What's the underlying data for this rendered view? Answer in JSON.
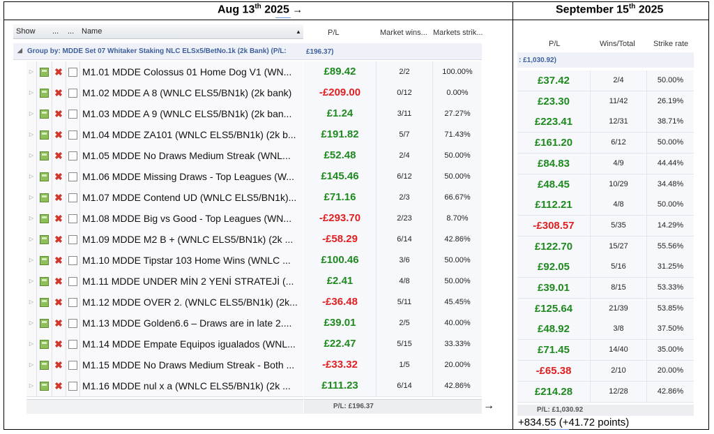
{
  "left_header": {
    "day": "Aug 13",
    "suffix": "th",
    "year": " 2025",
    "arrow": "→"
  },
  "right_header": {
    "day": "September 15",
    "suffix": "th",
    "year": " 2025"
  },
  "grid_columns": {
    "show": "Show",
    "dots1": "...",
    "dots2": "...",
    "name": "Name",
    "sort_icon": "triangle-up-icon"
  },
  "left_value_columns": {
    "pl": "P/L",
    "wins": "Market wins...",
    "strike": "Markets strik..."
  },
  "group_label": "Group by: MDDE Set 07 Whitaker Staking NLC ELSx5/BetNo.1k  (2k Bank)  (P/L:",
  "group_sum": "£196.37)",
  "strategies": [
    {
      "name": "M1.01 MDDE Colossus 01 Home Dog V1 (WN...",
      "pl": "£89.42",
      "wins": "2/2",
      "strike": "100.00%",
      "neg": false
    },
    {
      "name": "M1.02 MDDE A 8 (WNLC ELS5/BN1k) (2k bank)",
      "pl": "-£209.00",
      "wins": "0/12",
      "strike": "0.00%",
      "neg": true
    },
    {
      "name": "M1.03 MDDE A 9  (WNLC ELS5/BN1k) (2k ban...",
      "pl": "£1.24",
      "wins": "3/11",
      "strike": "27.27%",
      "neg": false
    },
    {
      "name": "M1.04 MDDE ZA101 (WNLC ELS5/BN1k) (2k b...",
      "pl": "£191.82",
      "wins": "5/7",
      "strike": "71.43%",
      "neg": false
    },
    {
      "name": "M1.05 MDDE No Draws Medium Streak (WNL...",
      "pl": "£52.48",
      "wins": "2/4",
      "strike": "50.00%",
      "neg": false
    },
    {
      "name": "M1.06 MDDE Missing Draws - Top Leagues (W...",
      "pl": "£145.46",
      "wins": "6/12",
      "strike": "50.00%",
      "neg": false
    },
    {
      "name": "M1.07 MDDE Contend UD (WNLC ELS5/BN1k)...",
      "pl": "£71.16",
      "wins": "2/3",
      "strike": "66.67%",
      "neg": false
    },
    {
      "name": "M1.08 MDDE Big vs Good - Top Leagues (WN...",
      "pl": "-£293.70",
      "wins": "2/23",
      "strike": "8.70%",
      "neg": true
    },
    {
      "name": "M1.09 MDDE M2 B + (WNLC ELS5/BN1k) (2k ...",
      "pl": "-£58.29",
      "wins": "6/14",
      "strike": "42.86%",
      "neg": true
    },
    {
      "name": "M1.10 MDDE Tipstar 103 Home Wins (WNLC ...",
      "pl": "£100.46",
      "wins": "3/6",
      "strike": "50.00%",
      "neg": false
    },
    {
      "name": "M1.11 MDDE UNDER MİN 2 YENİ STRATEJİ (...",
      "pl": "£2.41",
      "wins": "4/8",
      "strike": "50.00%",
      "neg": false
    },
    {
      "name": "M1.12 MDDE OVER 2. (WNLC ELS5/BN1k) (2k...",
      "pl": "-£36.48",
      "wins": "5/11",
      "strike": "45.45%",
      "neg": true
    },
    {
      "name": "M1.13 MDDE Golden6.6 – Draws are in late 2....",
      "pl": "£39.01",
      "wins": "2/5",
      "strike": "40.00%",
      "neg": false
    },
    {
      "name": "M1.14 MDDE Empate Equipos igualados (WNL...",
      "pl": "£22.47",
      "wins": "5/15",
      "strike": "33.33%",
      "neg": false
    },
    {
      "name": "M1.15 MDDE No Draws Medium Streak - Both ...",
      "pl": "-£33.32",
      "wins": "1/5",
      "strike": "20.00%",
      "neg": true
    },
    {
      "name": "M1.16 MDDE nul x a (WNLC ELS5/BN1k) (2k ...",
      "pl": "£111.23",
      "wins": "6/14",
      "strike": "42.86%",
      "neg": false
    }
  ],
  "left_footer": "P/L: £196.37",
  "mid_arrow": "→",
  "right_columns": {
    "pl": "P/L",
    "wins": "Wins/Total",
    "strike": "Strike rate"
  },
  "right_group": ": £1,030.92)",
  "right_rows": [
    {
      "pl": "£37.42",
      "wins": "2/4",
      "strike": "50.00%",
      "neg": false
    },
    {
      "pl": "£23.30",
      "wins": "11/42",
      "strike": "26.19%",
      "neg": false
    },
    {
      "pl": "£223.41",
      "wins": "12/31",
      "strike": "38.71%",
      "neg": false
    },
    {
      "pl": "£161.20",
      "wins": "6/12",
      "strike": "50.00%",
      "neg": false
    },
    {
      "pl": "£84.83",
      "wins": "4/9",
      "strike": "44.44%",
      "neg": false
    },
    {
      "pl": "£48.45",
      "wins": "10/29",
      "strike": "34.48%",
      "neg": false
    },
    {
      "pl": "£112.21",
      "wins": "4/8",
      "strike": "50.00%",
      "neg": false
    },
    {
      "pl": "-£308.57",
      "wins": "5/35",
      "strike": "14.29%",
      "neg": true
    },
    {
      "pl": "£122.70",
      "wins": "15/27",
      "strike": "55.56%",
      "neg": false
    },
    {
      "pl": "£92.05",
      "wins": "5/16",
      "strike": "31.25%",
      "neg": false
    },
    {
      "pl": "£39.01",
      "wins": "8/15",
      "strike": "53.33%",
      "neg": false
    },
    {
      "pl": "£125.64",
      "wins": "21/39",
      "strike": "53.85%",
      "neg": false
    },
    {
      "pl": "£48.92",
      "wins": "3/8",
      "strike": "37.50%",
      "neg": false
    },
    {
      "pl": "£71.45",
      "wins": "14/40",
      "strike": "35.00%",
      "neg": false
    },
    {
      "pl": "-£65.38",
      "wins": "2/10",
      "strike": "20.00%",
      "neg": true
    },
    {
      "pl": "£214.28",
      "wins": "12/28",
      "strike": "42.86%",
      "neg": false
    }
  ],
  "right_footer": "P/L: £1,030.92",
  "result_text": "+834.55  (+41.72 points)",
  "colors": {
    "positive": "#1e8a1e",
    "negative": "#e02020",
    "group_text": "#3e5f9b"
  }
}
